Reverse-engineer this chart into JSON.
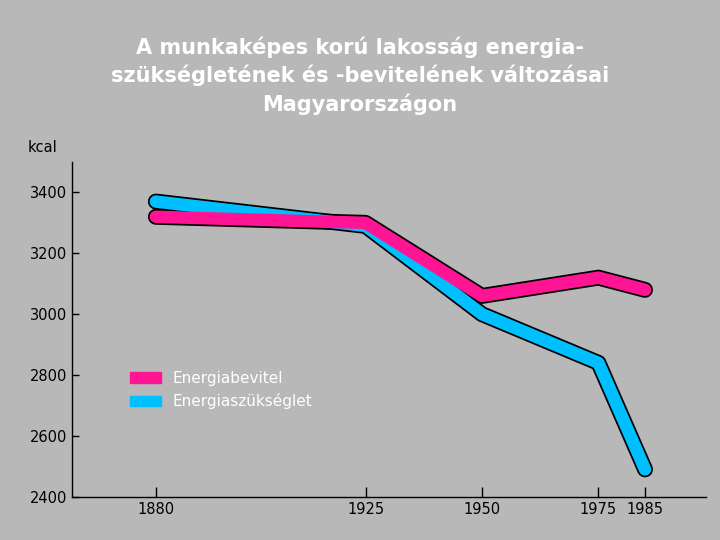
{
  "title_line1": "A munkaképes korú lakosság energia-",
  "title_line2": "szükségletének és -bevitelének változásai",
  "title_line3": "Magyarországon",
  "title_bg_color": "#1a237e",
  "title_left_color": "#8B5E3C",
  "title_text_color": "#ffffff",
  "plot_bg_color": "#b8b8b8",
  "fig_bg_color": "#b8b8b8",
  "kcal_label": "kcal",
  "x_values": [
    1880,
    1925,
    1950,
    1975,
    1985
  ],
  "bevitel_values": [
    3320,
    3300,
    3060,
    3120,
    3080
  ],
  "szukseglet_values": [
    3370,
    3290,
    3000,
    2840,
    2490
  ],
  "bevitel_color": "#ff1493",
  "szukseglet_color": "#00bfff",
  "outline_color": "#000000",
  "line_width": 9,
  "ylim": [
    2400,
    3500
  ],
  "yticks": [
    2400,
    2600,
    2800,
    3000,
    3200,
    3400
  ],
  "xticks": [
    1880,
    1925,
    1950,
    1975,
    1985
  ],
  "legend_bevitel": "Energiabevitel",
  "legend_szukseglet": "Energiaszükséglet",
  "legend_text_color": "#ffffff"
}
